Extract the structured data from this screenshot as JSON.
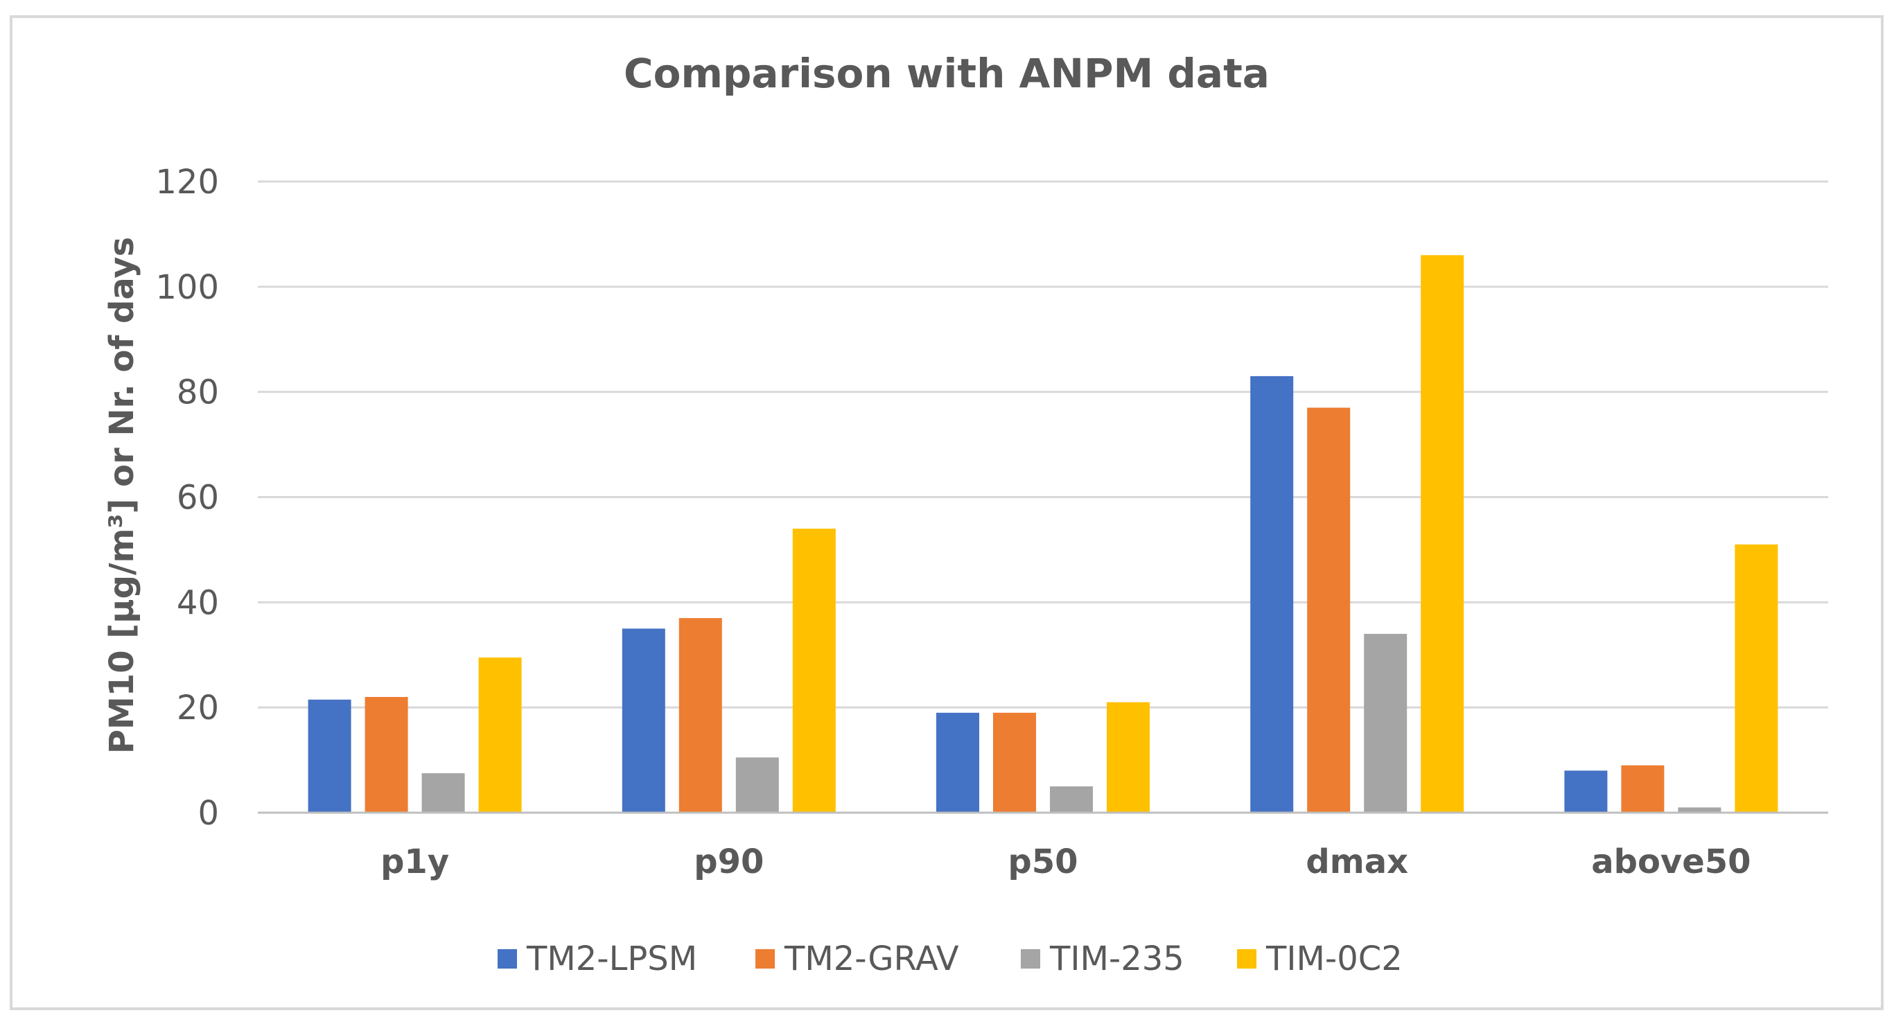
{
  "chart_data": {
    "type": "bar",
    "title": "Comparison with ANPM data",
    "xlabel": "",
    "ylabel": "PM10 [µg/m³]  or Nr. of days",
    "ylim": [
      0,
      120
    ],
    "yticks": [
      0,
      20,
      40,
      60,
      80,
      100,
      120
    ],
    "grid": true,
    "legend_position": "bottom",
    "categories": [
      "p1y",
      "p90",
      "p50",
      "dmax",
      "above50"
    ],
    "series": [
      {
        "name": "TM2-LPSM",
        "color": "#4472c4",
        "values": [
          21.5,
          35,
          19,
          83,
          8
        ]
      },
      {
        "name": "TM2-GRAV",
        "color": "#ed7d31",
        "values": [
          22,
          37,
          19,
          77,
          9
        ]
      },
      {
        "name": "TIM-235",
        "color": "#a5a5a5",
        "values": [
          7.5,
          10.5,
          5,
          34,
          1
        ]
      },
      {
        "name": "TIM-0C2",
        "color": "#ffc000",
        "values": [
          29.5,
          54,
          21,
          106,
          51
        ]
      }
    ]
  }
}
